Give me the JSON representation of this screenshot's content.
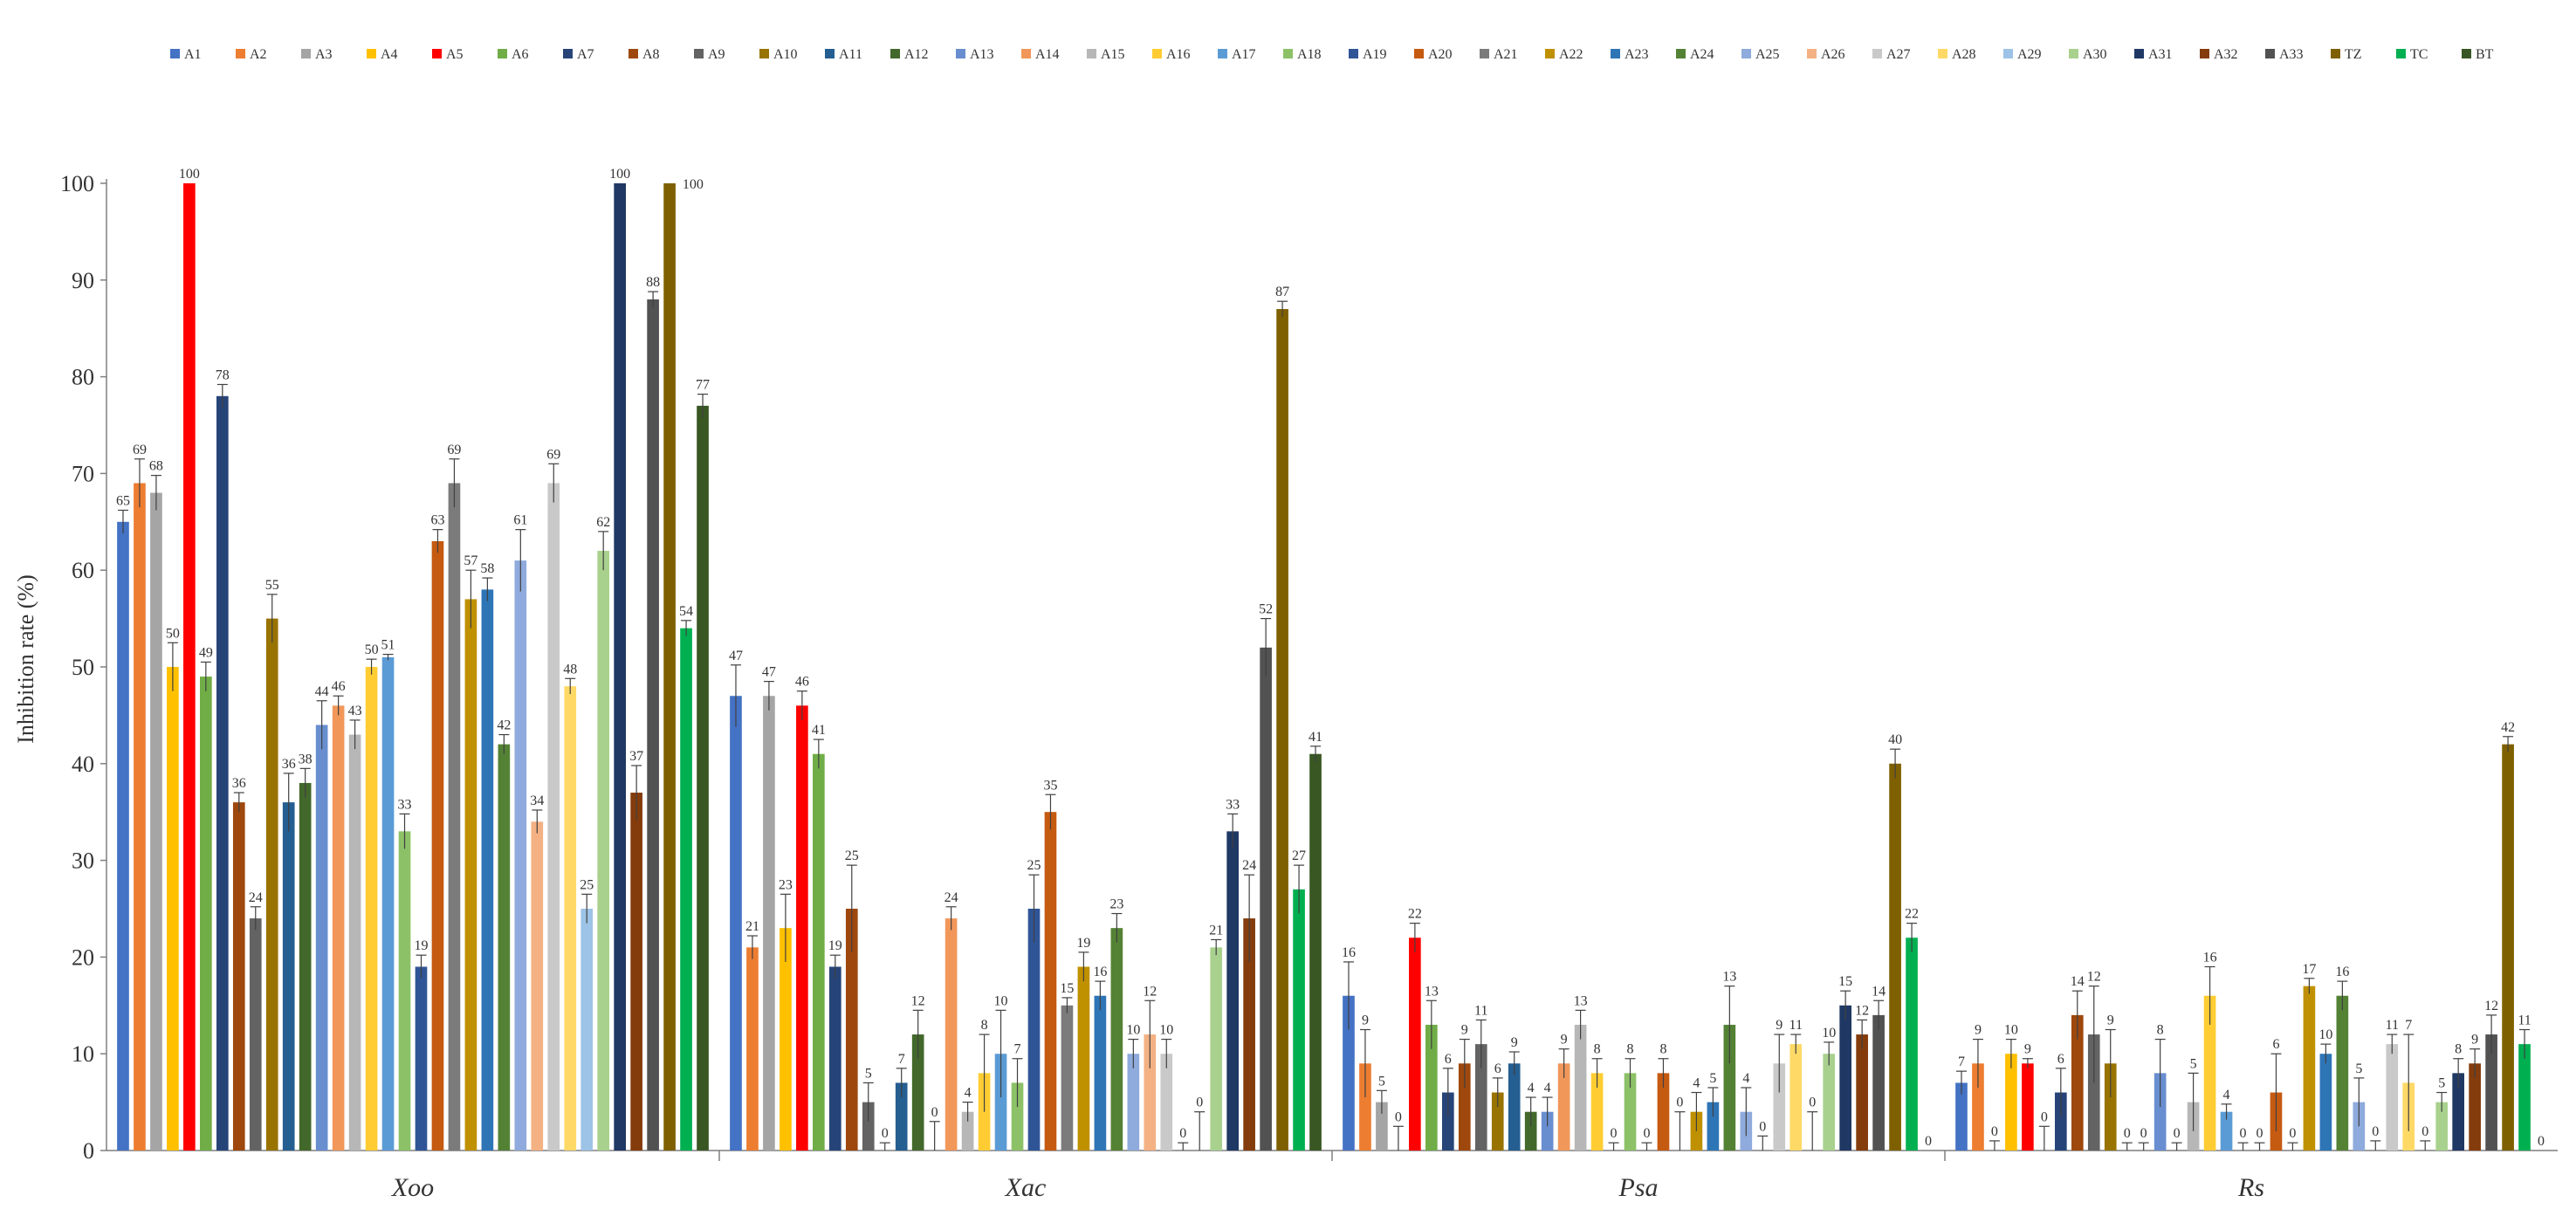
{
  "chart_data": {
    "type": "bar",
    "ylabel": "Inhibition rate (%)",
    "ylim": [
      0,
      100
    ],
    "yticks": [
      0,
      10,
      20,
      30,
      40,
      50,
      60,
      70,
      80,
      90,
      100
    ],
    "grid": false,
    "legend_position": "top",
    "categories": [
      "Xoo",
      "Xac",
      "Psa",
      "Rs"
    ],
    "series": [
      {
        "name": "A1",
        "color": "#4472C4",
        "values": [
          65,
          47,
          16,
          7
        ],
        "errors": [
          1.2,
          3.2,
          3.5,
          1.2
        ]
      },
      {
        "name": "A2",
        "color": "#ED7D31",
        "values": [
          69,
          21,
          9,
          9
        ],
        "errors": [
          2.5,
          1.2,
          3.5,
          2.5
        ]
      },
      {
        "name": "A3",
        "color": "#A5A5A5",
        "values": [
          68,
          47,
          5,
          0
        ],
        "errors": [
          1.8,
          1.5,
          1.2,
          1.0
        ]
      },
      {
        "name": "A4",
        "color": "#FFC000",
        "values": [
          50,
          23,
          0,
          10
        ],
        "errors": [
          2.5,
          3.5,
          2.5,
          1.5
        ]
      },
      {
        "name": "A5",
        "color": "#FF0000",
        "values": [
          100,
          46,
          22,
          9
        ],
        "errors": [
          0,
          1.5,
          1.5,
          0.5
        ]
      },
      {
        "name": "A6",
        "color": "#70AD47",
        "values": [
          49,
          41,
          13,
          0
        ],
        "errors": [
          1.5,
          1.5,
          2.5,
          2.5
        ]
      },
      {
        "name": "A7",
        "color": "#264478",
        "values": [
          78,
          19,
          6,
          6
        ],
        "errors": [
          1.2,
          1.2,
          2.5,
          2.5
        ]
      },
      {
        "name": "A8",
        "color": "#9E480E",
        "values": [
          36,
          25,
          9,
          14
        ],
        "errors": [
          1.0,
          4.5,
          2.5,
          2.5
        ]
      },
      {
        "name": "A9",
        "color": "#636363",
        "values": [
          24,
          5,
          11,
          12
        ],
        "errors": [
          1.2,
          2.0,
          2.5,
          5.0
        ]
      },
      {
        "name": "A10",
        "color": "#997300",
        "values": [
          55,
          0,
          6,
          9
        ],
        "errors": [
          2.5,
          0.8,
          1.5,
          3.5
        ]
      },
      {
        "name": "A11",
        "color": "#255E91",
        "values": [
          36,
          7,
          9,
          0
        ],
        "errors": [
          3.0,
          1.5,
          1.2,
          0.8
        ]
      },
      {
        "name": "A12",
        "color": "#43682B",
        "values": [
          38,
          12,
          4,
          0
        ],
        "errors": [
          1.5,
          2.5,
          1.5,
          0.8
        ]
      },
      {
        "name": "A13",
        "color": "#698ED0",
        "values": [
          44,
          0,
          4,
          8
        ],
        "errors": [
          2.5,
          3.0,
          1.5,
          3.5
        ]
      },
      {
        "name": "A14",
        "color": "#F1975A",
        "values": [
          46,
          24,
          9,
          0
        ],
        "errors": [
          1.0,
          1.2,
          1.5,
          0.8
        ]
      },
      {
        "name": "A15",
        "color": "#B7B7B7",
        "values": [
          43,
          4,
          13,
          5
        ],
        "errors": [
          1.5,
          1.0,
          1.5,
          3.0
        ]
      },
      {
        "name": "A16",
        "color": "#FFCD33",
        "values": [
          50,
          8,
          8,
          16
        ],
        "errors": [
          0.8,
          4.0,
          1.5,
          3.0
        ]
      },
      {
        "name": "A17",
        "color": "#5B9BD5",
        "values": [
          51,
          10,
          0,
          4
        ],
        "errors": [
          0.3,
          4.5,
          0.8,
          0.8
        ]
      },
      {
        "name": "A18",
        "color": "#8CC168",
        "values": [
          33,
          7,
          8,
          0
        ],
        "errors": [
          1.8,
          2.5,
          1.5,
          0.8
        ]
      },
      {
        "name": "A19",
        "color": "#2F5597",
        "values": [
          19,
          25,
          0,
          0
        ],
        "errors": [
          1.2,
          3.5,
          0.8,
          0.8
        ]
      },
      {
        "name": "A20",
        "color": "#C55A11",
        "values": [
          63,
          35,
          8,
          6
        ],
        "errors": [
          1.2,
          1.8,
          1.5,
          4.0
        ]
      },
      {
        "name": "A21",
        "color": "#7B7B7B",
        "values": [
          69,
          15,
          0,
          0
        ],
        "errors": [
          2.5,
          0.8,
          4.0,
          0.8
        ]
      },
      {
        "name": "A22",
        "color": "#BF9000",
        "values": [
          57,
          19,
          4,
          17
        ],
        "errors": [
          3.0,
          1.5,
          2.0,
          0.8
        ]
      },
      {
        "name": "A23",
        "color": "#2E75B6",
        "values": [
          58,
          16,
          5,
          10
        ],
        "errors": [
          1.2,
          1.5,
          1.5,
          1.0
        ]
      },
      {
        "name": "A24",
        "color": "#548235",
        "values": [
          42,
          23,
          13,
          16
        ],
        "errors": [
          1.0,
          1.5,
          4.0,
          1.5
        ]
      },
      {
        "name": "A25",
        "color": "#8FAADC",
        "values": [
          61,
          10,
          4,
          5
        ],
        "errors": [
          3.2,
          1.5,
          2.5,
          2.5
        ]
      },
      {
        "name": "A26",
        "color": "#F4B183",
        "values": [
          34,
          12,
          0,
          0
        ],
        "errors": [
          1.2,
          3.5,
          1.5,
          1.0
        ]
      },
      {
        "name": "A27",
        "color": "#C9C9C9",
        "values": [
          69,
          10,
          9,
          11
        ],
        "errors": [
          2.0,
          1.5,
          3.0,
          1.0
        ]
      },
      {
        "name": "A28",
        "color": "#FFD966",
        "values": [
          48,
          0,
          11,
          7
        ],
        "errors": [
          0.8,
          0.8,
          1.0,
          5.0
        ]
      },
      {
        "name": "A29",
        "color": "#9DC3E6",
        "values": [
          25,
          0,
          0,
          0
        ],
        "errors": [
          1.5,
          4.0,
          4.0,
          1.0
        ]
      },
      {
        "name": "A30",
        "color": "#A9D18E",
        "values": [
          62,
          21,
          10,
          5
        ],
        "errors": [
          2.0,
          0.8,
          1.2,
          1.0
        ]
      },
      {
        "name": "A31",
        "color": "#1F3864",
        "values": [
          100,
          33,
          15,
          8
        ],
        "errors": [
          0,
          1.8,
          1.5,
          1.5
        ]
      },
      {
        "name": "A32",
        "color": "#843C0C",
        "values": [
          37,
          24,
          12,
          9
        ],
        "errors": [
          2.8,
          4.5,
          1.5,
          1.5
        ]
      },
      {
        "name": "A33",
        "color": "#525252",
        "values": [
          88,
          52,
          14,
          12
        ],
        "errors": [
          0.8,
          3.0,
          1.5,
          2.0
        ]
      },
      {
        "name": "TZ",
        "color": "#7F6000",
        "values": [
          100,
          87,
          40,
          42
        ],
        "errors": [
          0,
          0.8,
          1.5,
          0.8
        ]
      },
      {
        "name": "TC",
        "color": "#00B050",
        "values": [
          54,
          27,
          22,
          11
        ],
        "errors": [
          0.8,
          2.5,
          1.5,
          1.5
        ]
      },
      {
        "name": "BT",
        "color": "#385723",
        "values": [
          77,
          41,
          0,
          0
        ],
        "errors": [
          1.2,
          0.8,
          0,
          0
        ]
      }
    ]
  }
}
